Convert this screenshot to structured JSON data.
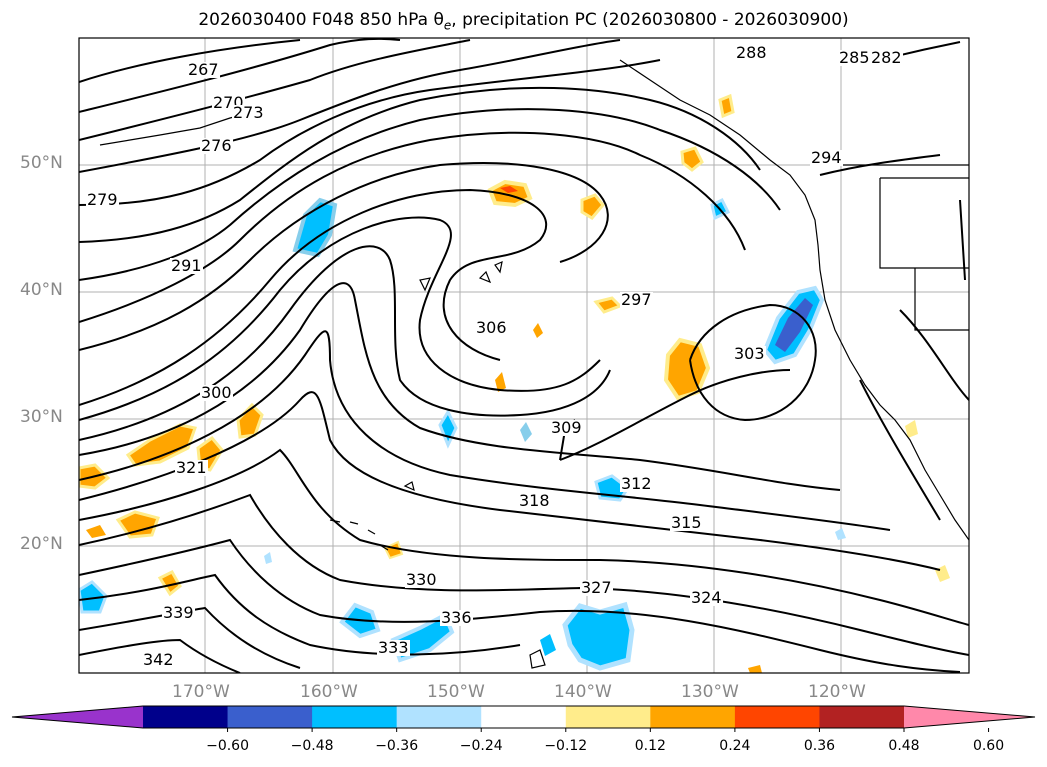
{
  "title_text": "2026030400 F048 850 hPa θ",
  "title_sub": "e",
  "title_rest": ", precipitation PC (2026030800 - 2026030900)",
  "lat_labels": [
    "50°N",
    "40°N",
    "30°N",
    "20°N"
  ],
  "lon_labels": [
    "170°W",
    "160°W",
    "150°W",
    "140°W",
    "130°W",
    "120°W"
  ],
  "colorbar": {
    "ticks": [
      "−0.60",
      "−0.48",
      "−0.36",
      "−0.24",
      "−0.12",
      "0.12",
      "0.24",
      "0.36",
      "0.48",
      "0.60"
    ],
    "colors": [
      "#9933cc",
      "#00008b",
      "#3a5fcd",
      "#00bfff",
      "#b0e2ff",
      "#ffffff",
      "#ffec8b",
      "#ffa500",
      "#ff4500",
      "#b22222",
      "#ff88aa"
    ]
  },
  "contour_labels": [
    "267",
    "270",
    "273",
    "276",
    "279",
    "282",
    "285",
    "288",
    "291",
    "294",
    "297",
    "300",
    "303",
    "306",
    "309",
    "312",
    "315",
    "318",
    "321",
    "324",
    "327",
    "330",
    "333",
    "336",
    "339",
    "342"
  ],
  "map": {
    "land_color": "#ffffff",
    "grid_color": "#b0b0b0",
    "contour_color": "#000000"
  }
}
